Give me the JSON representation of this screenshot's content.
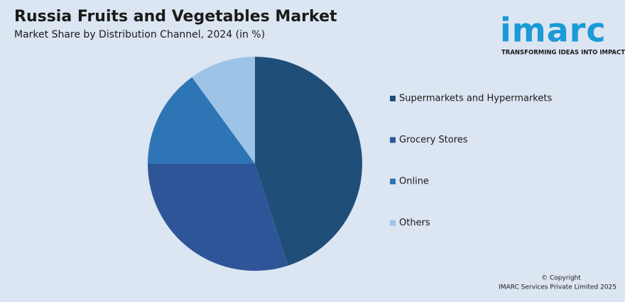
{
  "chart_data": {
    "type": "pie",
    "title": "Russia Fruits and Vegetables Market",
    "subtitle": "Market Share by Distribution Channel, 2024 (in %)",
    "categories": [
      "Supermarkets and Hypermarkets",
      "Grocery Stores",
      "Online",
      "Others"
    ],
    "values": [
      45,
      30,
      15,
      10
    ],
    "colors": [
      "#1f4e79",
      "#2e5597",
      "#2e75b6",
      "#9dc3e6"
    ],
    "legend": "right"
  },
  "logo": {
    "text": "imarc",
    "tagline": "TRANSFORMING IDEAS INTO IMPACT"
  },
  "footer": {
    "copyright": "© Copyright",
    "company": "IMARC Services Private Limited 2025"
  }
}
